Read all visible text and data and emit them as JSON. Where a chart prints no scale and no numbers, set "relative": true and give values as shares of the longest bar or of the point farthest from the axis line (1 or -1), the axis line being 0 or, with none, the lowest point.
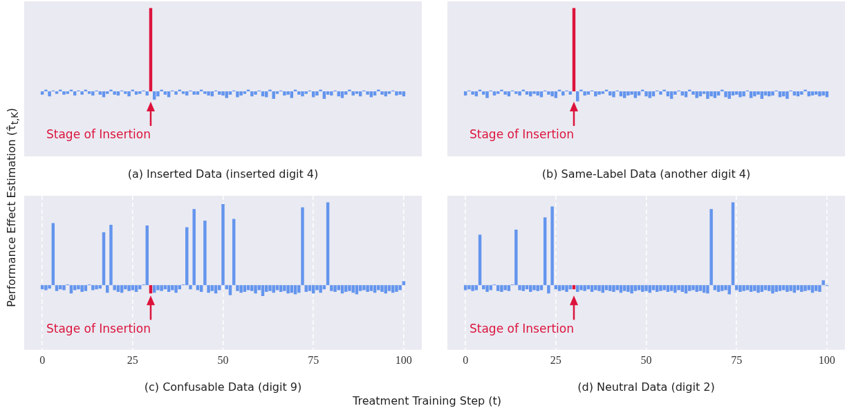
{
  "chart_data": [
    {
      "type": "bar",
      "title": "(a) Inserted Data (inserted digit 4)",
      "ylabel": "Performance Effect Estimation (τ̂$_{t,K}$)",
      "relative": true,
      "xlim": [
        -5,
        105
      ],
      "tick_labels": false,
      "grid": false,
      "x": [
        0,
        1,
        2,
        3,
        4,
        5,
        6,
        7,
        8,
        9,
        10,
        11,
        12,
        13,
        14,
        15,
        16,
        17,
        18,
        19,
        20,
        21,
        22,
        23,
        24,
        25,
        26,
        27,
        28,
        29,
        30,
        31,
        32,
        33,
        34,
        35,
        36,
        37,
        38,
        39,
        40,
        41,
        42,
        43,
        44,
        45,
        46,
        47,
        48,
        49,
        50,
        51,
        52,
        53,
        54,
        55,
        56,
        57,
        58,
        59,
        60,
        61,
        62,
        63,
        64,
        65,
        66,
        67,
        68,
        69,
        70,
        71,
        72,
        73,
        74,
        75,
        76,
        77,
        78,
        79,
        80,
        81,
        82,
        83,
        84,
        85,
        86,
        87,
        88,
        89,
        90,
        91,
        92,
        93,
        94,
        95,
        96,
        97,
        98,
        99,
        100
      ],
      "values": [
        -0.04,
        0.02,
        -0.06,
        0.01,
        -0.03,
        0.02,
        -0.04,
        -0.03,
        0.02,
        -0.05,
        0.01,
        -0.04,
        0.02,
        -0.03,
        -0.05,
        0.01,
        -0.04,
        -0.07,
        -0.03,
        0.02,
        -0.04,
        -0.05,
        0.01,
        -0.03,
        -0.06,
        0.02,
        -0.04,
        -0.03,
        0.01,
        -0.05,
        1,
        -0.1,
        -0.06,
        0.02,
        -0.04,
        -0.07,
        0.01,
        -0.04,
        0.02,
        -0.03,
        -0.05,
        0.01,
        -0.04,
        -0.04,
        0.02,
        -0.03,
        -0.05,
        -0.06,
        0.01,
        -0.04,
        -0.05,
        -0.08,
        -0.04,
        0.01,
        -0.07,
        -0.05,
        -0.03,
        0.02,
        -0.06,
        -0.04,
        0.01,
        -0.06,
        -0.07,
        0.02,
        -0.09,
        -0.03,
        0.01,
        -0.05,
        -0.04,
        -0.08,
        0.02,
        -0.04,
        -0.06,
        -0.03,
        0.01,
        -0.07,
        -0.05,
        0.02,
        -0.09,
        -0.04,
        -0.05,
        0.01,
        -0.06,
        -0.08,
        -0.04,
        0.02,
        -0.05,
        -0.03,
        -0.06,
        0.01,
        -0.04,
        -0.07,
        -0.05,
        0.02,
        -0.04,
        -0.06,
        -0.03,
        0.01,
        -0.05,
        -0.04,
        -0.06
      ],
      "colors": [
        "#6495ed",
        "#6495ed",
        "#6495ed",
        "#6495ed",
        "#6495ed",
        "#6495ed",
        "#6495ed",
        "#6495ed",
        "#6495ed",
        "#6495ed",
        "#6495ed",
        "#6495ed",
        "#6495ed",
        "#6495ed",
        "#6495ed",
        "#6495ed",
        "#6495ed",
        "#6495ed",
        "#6495ed",
        "#6495ed",
        "#6495ed",
        "#6495ed",
        "#6495ed",
        "#6495ed",
        "#6495ed",
        "#6495ed",
        "#6495ed",
        "#6495ed",
        "#6495ed",
        "#6495ed",
        "#dc143c",
        "#6495ed",
        "#6495ed",
        "#6495ed",
        "#6495ed",
        "#6495ed",
        "#6495ed",
        "#6495ed",
        "#6495ed",
        "#6495ed",
        "#6495ed",
        "#6495ed",
        "#6495ed",
        "#6495ed",
        "#6495ed",
        "#6495ed",
        "#6495ed",
        "#6495ed",
        "#6495ed",
        "#6495ed",
        "#6495ed",
        "#6495ed",
        "#6495ed",
        "#6495ed",
        "#6495ed",
        "#6495ed",
        "#6495ed",
        "#6495ed",
        "#6495ed",
        "#6495ed",
        "#6495ed",
        "#6495ed",
        "#6495ed",
        "#6495ed",
        "#6495ed",
        "#6495ed",
        "#6495ed",
        "#6495ed",
        "#6495ed",
        "#6495ed",
        "#6495ed",
        "#6495ed",
        "#6495ed",
        "#6495ed",
        "#6495ed",
        "#6495ed",
        "#6495ed",
        "#6495ed",
        "#6495ed",
        "#6495ed",
        "#6495ed",
        "#6495ed",
        "#6495ed",
        "#6495ed",
        "#6495ed",
        "#6495ed",
        "#6495ed",
        "#6495ed",
        "#6495ed",
        "#6495ed",
        "#6495ed",
        "#6495ed",
        "#6495ed",
        "#6495ed",
        "#6495ed",
        "#6495ed",
        "#6495ed",
        "#6495ed",
        "#6495ed",
        "#6495ed",
        "#6495ed"
      ],
      "annotations": [
        "Stage of Insertion"
      ]
    },
    {
      "type": "bar",
      "title": "(b) Same-Label Data (another digit 4)",
      "relative": true,
      "xlim": [
        -5,
        105
      ],
      "tick_labels": false,
      "grid": false,
      "x": [
        0,
        1,
        2,
        3,
        4,
        5,
        6,
        7,
        8,
        9,
        10,
        11,
        12,
        13,
        14,
        15,
        16,
        17,
        18,
        19,
        20,
        21,
        22,
        23,
        24,
        25,
        26,
        27,
        28,
        29,
        30,
        31,
        32,
        33,
        34,
        35,
        36,
        37,
        38,
        39,
        40,
        41,
        42,
        43,
        44,
        45,
        46,
        47,
        48,
        49,
        50,
        51,
        52,
        53,
        54,
        55,
        56,
        57,
        58,
        59,
        60,
        61,
        62,
        63,
        64,
        65,
        66,
        67,
        68,
        69,
        70,
        71,
        72,
        73,
        74,
        75,
        76,
        77,
        78,
        79,
        80,
        81,
        82,
        83,
        84,
        85,
        86,
        87,
        88,
        89,
        90,
        91,
        92,
        93,
        94,
        95,
        96,
        97,
        98,
        99,
        100
      ],
      "values": [
        -0.05,
        0.01,
        -0.04,
        -0.06,
        0.02,
        -0.04,
        -0.08,
        0.01,
        -0.05,
        -0.03,
        0.02,
        -0.04,
        -0.06,
        0.01,
        -0.03,
        -0.05,
        0.02,
        -0.04,
        -0.06,
        -0.03,
        -0.05,
        -0.07,
        0.01,
        -0.04,
        -0.06,
        -0.08,
        0.02,
        -0.05,
        0.01,
        -0.04,
        1,
        -0.12,
        0.02,
        -0.05,
        -0.04,
        0.01,
        -0.06,
        -0.04,
        -0.03,
        0.02,
        -0.05,
        -0.07,
        0.01,
        -0.06,
        -0.08,
        -0.05,
        -0.04,
        -0.08,
        -0.05,
        0.02,
        -0.06,
        -0.08,
        -0.06,
        0.01,
        -0.04,
        0.02,
        -0.06,
        -0.09,
        -0.04,
        0.01,
        -0.05,
        -0.07,
        0.02,
        -0.04,
        -0.08,
        -0.06,
        -0.03,
        -0.09,
        -0.06,
        -0.08,
        -0.05,
        0.02,
        -0.07,
        -0.09,
        -0.05,
        -0.04,
        -0.07,
        -0.06,
        0.01,
        -0.08,
        -0.06,
        -0.04,
        -0.09,
        -0.05,
        -0.06,
        -0.05,
        0.01,
        -0.07,
        -0.06,
        -0.09,
        0.01,
        -0.05,
        -0.06,
        -0.04,
        0.02,
        -0.06,
        -0.05,
        -0.04,
        -0.06,
        -0.05,
        -0.07
      ],
      "colors": [
        "#6495ed",
        "#6495ed",
        "#6495ed",
        "#6495ed",
        "#6495ed",
        "#6495ed",
        "#6495ed",
        "#6495ed",
        "#6495ed",
        "#6495ed",
        "#6495ed",
        "#6495ed",
        "#6495ed",
        "#6495ed",
        "#6495ed",
        "#6495ed",
        "#6495ed",
        "#6495ed",
        "#6495ed",
        "#6495ed",
        "#6495ed",
        "#6495ed",
        "#6495ed",
        "#6495ed",
        "#6495ed",
        "#6495ed",
        "#6495ed",
        "#6495ed",
        "#6495ed",
        "#6495ed",
        "#dc143c",
        "#6495ed",
        "#6495ed",
        "#6495ed",
        "#6495ed",
        "#6495ed",
        "#6495ed",
        "#6495ed",
        "#6495ed",
        "#6495ed",
        "#6495ed",
        "#6495ed",
        "#6495ed",
        "#6495ed",
        "#6495ed",
        "#6495ed",
        "#6495ed",
        "#6495ed",
        "#6495ed",
        "#6495ed",
        "#6495ed",
        "#6495ed",
        "#6495ed",
        "#6495ed",
        "#6495ed",
        "#6495ed",
        "#6495ed",
        "#6495ed",
        "#6495ed",
        "#6495ed",
        "#6495ed",
        "#6495ed",
        "#6495ed",
        "#6495ed",
        "#6495ed",
        "#6495ed",
        "#6495ed",
        "#6495ed",
        "#6495ed",
        "#6495ed",
        "#6495ed",
        "#6495ed",
        "#6495ed",
        "#6495ed",
        "#6495ed",
        "#6495ed",
        "#6495ed",
        "#6495ed",
        "#6495ed",
        "#6495ed",
        "#6495ed",
        "#6495ed",
        "#6495ed",
        "#6495ed",
        "#6495ed",
        "#6495ed",
        "#6495ed",
        "#6495ed",
        "#6495ed",
        "#6495ed",
        "#6495ed",
        "#6495ed",
        "#6495ed",
        "#6495ed",
        "#6495ed",
        "#6495ed",
        "#6495ed",
        "#6495ed",
        "#6495ed",
        "#6495ed",
        "#6495ed"
      ],
      "annotations": [
        "Stage of Insertion"
      ]
    },
    {
      "type": "bar",
      "title": "(c) Confusable Data (digit 9)",
      "xlabel": "Treatment Training Step (t)",
      "relative": true,
      "xlim": [
        -5,
        105
      ],
      "xticks": [
        0,
        25,
        50,
        75,
        100
      ],
      "tick_labels": "x",
      "grid": "x",
      "x": [
        0,
        1,
        2,
        3,
        4,
        5,
        6,
        7,
        8,
        9,
        10,
        11,
        12,
        13,
        14,
        15,
        16,
        17,
        18,
        19,
        20,
        21,
        22,
        23,
        24,
        25,
        26,
        27,
        28,
        29,
        30,
        31,
        32,
        33,
        34,
        35,
        36,
        37,
        38,
        39,
        40,
        41,
        42,
        43,
        44,
        45,
        46,
        47,
        48,
        49,
        50,
        51,
        52,
        53,
        54,
        55,
        56,
        57,
        58,
        59,
        60,
        61,
        62,
        63,
        64,
        65,
        66,
        67,
        68,
        69,
        70,
        71,
        72,
        73,
        74,
        75,
        76,
        77,
        78,
        79,
        80,
        81,
        82,
        83,
        84,
        85,
        86,
        87,
        88,
        89,
        90,
        91,
        92,
        93,
        94,
        95,
        96,
        97,
        98,
        99,
        100
      ],
      "values": [
        -0.05,
        -0.06,
        -0.04,
        0.75,
        -0.07,
        -0.05,
        -0.06,
        0.01,
        -0.1,
        -0.06,
        -0.05,
        -0.08,
        -0.07,
        0.01,
        -0.06,
        -0.05,
        -0.04,
        0.64,
        -0.09,
        0.73,
        -0.06,
        -0.08,
        -0.09,
        -0.05,
        -0.07,
        -0.06,
        -0.08,
        -0.05,
        0.01,
        0.72,
        -0.1,
        -0.09,
        -0.06,
        -0.07,
        -0.05,
        -0.08,
        -0.06,
        -0.09,
        -0.05,
        0.01,
        0.7,
        -0.05,
        0.92,
        -0.06,
        -0.08,
        0.78,
        -0.09,
        -0.07,
        -0.1,
        -0.06,
        0.98,
        -0.05,
        -0.12,
        0.8,
        -0.07,
        -0.09,
        -0.08,
        -0.06,
        -0.07,
        -0.1,
        -0.06,
        -0.13,
        -0.08,
        -0.07,
        -0.09,
        -0.06,
        -0.08,
        -0.07,
        -0.1,
        -0.09,
        -0.11,
        -0.09,
        0.94,
        -0.08,
        -0.07,
        -0.1,
        -0.06,
        -0.09,
        -0.05,
        1,
        -0.07,
        -0.08,
        -0.06,
        -0.1,
        -0.08,
        -0.07,
        -0.09,
        -0.11,
        -0.07,
        -0.06,
        -0.08,
        -0.07,
        -0.09,
        -0.06,
        -0.08,
        -0.1,
        -0.07,
        -0.09,
        -0.08,
        -0.06,
        0.05
      ],
      "colors": [
        "#6495ed",
        "#6495ed",
        "#6495ed",
        "#6495ed",
        "#6495ed",
        "#6495ed",
        "#6495ed",
        "#6495ed",
        "#6495ed",
        "#6495ed",
        "#6495ed",
        "#6495ed",
        "#6495ed",
        "#6495ed",
        "#6495ed",
        "#6495ed",
        "#6495ed",
        "#6495ed",
        "#6495ed",
        "#6495ed",
        "#6495ed",
        "#6495ed",
        "#6495ed",
        "#6495ed",
        "#6495ed",
        "#6495ed",
        "#6495ed",
        "#6495ed",
        "#6495ed",
        "#6495ed",
        "#dc143c",
        "#6495ed",
        "#6495ed",
        "#6495ed",
        "#6495ed",
        "#6495ed",
        "#6495ed",
        "#6495ed",
        "#6495ed",
        "#6495ed",
        "#6495ed",
        "#6495ed",
        "#6495ed",
        "#6495ed",
        "#6495ed",
        "#6495ed",
        "#6495ed",
        "#6495ed",
        "#6495ed",
        "#6495ed",
        "#6495ed",
        "#6495ed",
        "#6495ed",
        "#6495ed",
        "#6495ed",
        "#6495ed",
        "#6495ed",
        "#6495ed",
        "#6495ed",
        "#6495ed",
        "#6495ed",
        "#6495ed",
        "#6495ed",
        "#6495ed",
        "#6495ed",
        "#6495ed",
        "#6495ed",
        "#6495ed",
        "#6495ed",
        "#6495ed",
        "#6495ed",
        "#6495ed",
        "#6495ed",
        "#6495ed",
        "#6495ed",
        "#6495ed",
        "#6495ed",
        "#6495ed",
        "#6495ed",
        "#6495ed",
        "#6495ed",
        "#6495ed",
        "#6495ed",
        "#6495ed",
        "#6495ed",
        "#6495ed",
        "#6495ed",
        "#6495ed",
        "#6495ed",
        "#6495ed",
        "#6495ed",
        "#6495ed",
        "#6495ed",
        "#6495ed",
        "#6495ed",
        "#6495ed",
        "#6495ed",
        "#6495ed",
        "#6495ed",
        "#6495ed",
        "#6495ed"
      ],
      "annotations": [
        "Stage of Insertion"
      ]
    },
    {
      "type": "bar",
      "title": "(d) Neutral Data (digit 2)",
      "relative": true,
      "xlim": [
        -5,
        105
      ],
      "xticks": [
        0,
        25,
        50,
        75,
        100
      ],
      "tick_labels": "x",
      "grid": "x",
      "x": [
        0,
        1,
        2,
        3,
        4,
        5,
        6,
        7,
        8,
        9,
        10,
        11,
        12,
        13,
        14,
        15,
        16,
        17,
        18,
        19,
        20,
        21,
        22,
        23,
        24,
        25,
        26,
        27,
        28,
        29,
        30,
        31,
        32,
        33,
        34,
        35,
        36,
        37,
        38,
        39,
        40,
        41,
        42,
        43,
        44,
        45,
        46,
        47,
        48,
        49,
        50,
        51,
        52,
        53,
        54,
        55,
        56,
        57,
        58,
        59,
        60,
        61,
        62,
        63,
        64,
        65,
        66,
        67,
        68,
        69,
        70,
        71,
        72,
        73,
        74,
        75,
        76,
        77,
        78,
        79,
        80,
        81,
        82,
        83,
        84,
        85,
        86,
        87,
        88,
        89,
        90,
        91,
        92,
        93,
        94,
        95,
        96,
        97,
        98,
        99,
        100
      ],
      "values": [
        -0.06,
        -0.05,
        -0.07,
        -0.06,
        0.61,
        -0.05,
        -0.08,
        -0.06,
        0.01,
        -0.07,
        -0.08,
        -0.06,
        -0.07,
        0.01,
        0.67,
        -0.06,
        -0.07,
        -0.05,
        -0.08,
        -0.06,
        -0.07,
        -0.06,
        0.82,
        -0.1,
        0.95,
        -0.05,
        -0.07,
        -0.06,
        -0.08,
        -0.05,
        -0.05,
        -0.08,
        -0.06,
        -0.07,
        -0.05,
        -0.08,
        -0.06,
        -0.07,
        -0.09,
        -0.06,
        -0.07,
        -0.08,
        -0.06,
        -0.09,
        -0.07,
        -0.08,
        -0.1,
        -0.07,
        -0.06,
        -0.08,
        -0.07,
        -0.09,
        -0.06,
        -0.08,
        -0.07,
        -0.06,
        -0.08,
        -0.07,
        -0.09,
        -0.06,
        -0.08,
        -0.1,
        -0.07,
        -0.06,
        -0.08,
        -0.07,
        -0.09,
        -0.1,
        0.92,
        -0.06,
        -0.08,
        -0.07,
        -0.06,
        -0.11,
        1,
        -0.06,
        -0.08,
        -0.07,
        -0.06,
        -0.08,
        -0.07,
        -0.09,
        -0.08,
        -0.06,
        -0.07,
        -0.1,
        -0.08,
        -0.07,
        -0.06,
        -0.08,
        -0.07,
        -0.09,
        -0.06,
        -0.08,
        -0.07,
        -0.06,
        -0.09,
        -0.07,
        -0.08,
        0.06,
        -0.01
      ],
      "colors": [
        "#6495ed",
        "#6495ed",
        "#6495ed",
        "#6495ed",
        "#6495ed",
        "#6495ed",
        "#6495ed",
        "#6495ed",
        "#6495ed",
        "#6495ed",
        "#6495ed",
        "#6495ed",
        "#6495ed",
        "#6495ed",
        "#6495ed",
        "#6495ed",
        "#6495ed",
        "#6495ed",
        "#6495ed",
        "#6495ed",
        "#6495ed",
        "#6495ed",
        "#6495ed",
        "#6495ed",
        "#6495ed",
        "#6495ed",
        "#6495ed",
        "#6495ed",
        "#6495ed",
        "#6495ed",
        "#dc143c",
        "#6495ed",
        "#6495ed",
        "#6495ed",
        "#6495ed",
        "#6495ed",
        "#6495ed",
        "#6495ed",
        "#6495ed",
        "#6495ed",
        "#6495ed",
        "#6495ed",
        "#6495ed",
        "#6495ed",
        "#6495ed",
        "#6495ed",
        "#6495ed",
        "#6495ed",
        "#6495ed",
        "#6495ed",
        "#6495ed",
        "#6495ed",
        "#6495ed",
        "#6495ed",
        "#6495ed",
        "#6495ed",
        "#6495ed",
        "#6495ed",
        "#6495ed",
        "#6495ed",
        "#6495ed",
        "#6495ed",
        "#6495ed",
        "#6495ed",
        "#6495ed",
        "#6495ed",
        "#6495ed",
        "#6495ed",
        "#6495ed",
        "#6495ed",
        "#6495ed",
        "#6495ed",
        "#6495ed",
        "#6495ed",
        "#6495ed",
        "#6495ed",
        "#6495ed",
        "#6495ed",
        "#6495ed",
        "#6495ed",
        "#6495ed",
        "#6495ed",
        "#6495ed",
        "#6495ed",
        "#6495ed",
        "#6495ed",
        "#6495ed",
        "#6495ed",
        "#6495ed",
        "#6495ed",
        "#6495ed",
        "#6495ed",
        "#6495ed",
        "#6495ed",
        "#6495ed",
        "#6495ed",
        "#6495ed",
        "#6495ed",
        "#6495ed",
        "#6495ed",
        "#6495ed"
      ],
      "annotations": [
        "Stage of Insertion"
      ]
    }
  ]
}
